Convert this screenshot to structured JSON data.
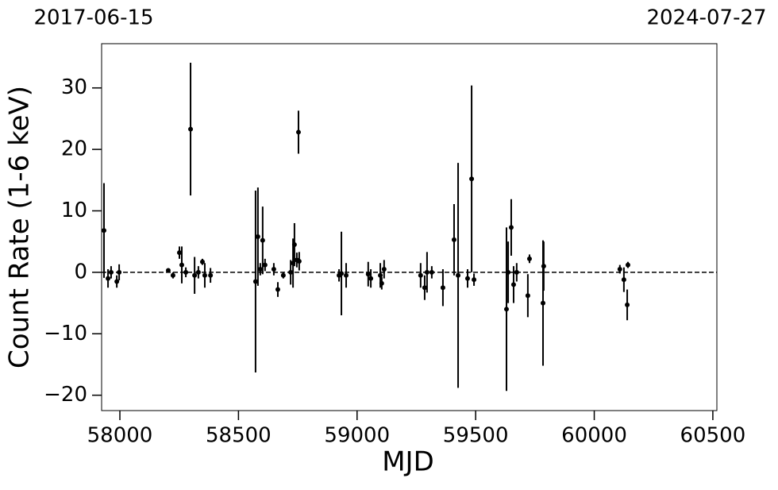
{
  "chart_data": {
    "type": "errorbar-scatter",
    "xlabel": "MJD",
    "ylabel": "Count Rate (1-6 keV)",
    "top_labels": [
      "2017-06-15",
      "2024-07-27"
    ],
    "xlim": [
      57923,
      60517
    ],
    "ylim": [
      -22.5,
      37.2
    ],
    "xticks": [
      58000,
      58500,
      59000,
      59500,
      60000,
      60500
    ],
    "yticks": [
      {
        "value": -20,
        "label": "−20"
      },
      {
        "value": -10,
        "label": "−10"
      },
      0,
      10,
      20,
      30
    ],
    "hline": 0,
    "color": "#000000",
    "x": [
      57933,
      57950,
      57963,
      57987,
      57997,
      58204,
      58224,
      58251,
      58261,
      58278,
      58298,
      58315,
      58331,
      58348,
      58358,
      58382,
      58572,
      58582,
      58592,
      58602,
      58612,
      58649,
      58666,
      58689,
      58720,
      58730,
      58736,
      58746,
      58753,
      58756,
      58924,
      58934,
      58954,
      59047,
      59058,
      59098,
      59104,
      59114,
      59268,
      59285,
      59295,
      59315,
      59362,
      59409,
      59426,
      59466,
      59483,
      59493,
      59630,
      59637,
      59650,
      59660,
      59673,
      59720,
      59727,
      59784,
      59787,
      60108,
      60125,
      60139,
      60142
    ],
    "values": [
      6.8,
      -1,
      0,
      -1.5,
      0,
      0.3,
      -0.5,
      3.2,
      1.2,
      0,
      23.3,
      -0.5,
      0,
      1.7,
      -0.5,
      -0.5,
      -1.5,
      5.8,
      0.5,
      5.2,
      1.2,
      0.5,
      -2.8,
      -0.5,
      0,
      1.5,
      4.5,
      2,
      22.8,
      1.8,
      -0.5,
      -0.2,
      -0.5,
      -0.3,
      -1,
      -0.5,
      -1.8,
      0.5,
      -0.5,
      -2.5,
      0,
      0,
      -2.5,
      5.3,
      -0.5,
      -1,
      15.2,
      -1.2,
      -6,
      0,
      7.3,
      -2,
      0,
      -3.8,
      2.2,
      -5,
      1,
      0.5,
      -1.2,
      -5.3,
      1.2
    ],
    "errors": [
      7.7,
      1.5,
      1,
      1,
      1.3,
      0.3,
      0.5,
      1,
      3,
      0.8,
      10.8,
      3,
      1,
      0.5,
      2,
      1.2,
      14.8,
      8,
      1,
      5.5,
      1,
      1,
      1.2,
      0.5,
      2,
      4,
      3.5,
      1.2,
      3.5,
      1.5,
      1,
      6.8,
      2,
      2,
      1.5,
      2,
      1,
      1.5,
      2,
      2,
      3.3,
      1,
      3,
      5.8,
      18.3,
      1.5,
      15.2,
      1,
      13.3,
      5,
      4.6,
      3,
      1.5,
      3.5,
      0.7,
      10.2,
      4,
      0.7,
      2,
      2.5,
      0.5
    ]
  }
}
